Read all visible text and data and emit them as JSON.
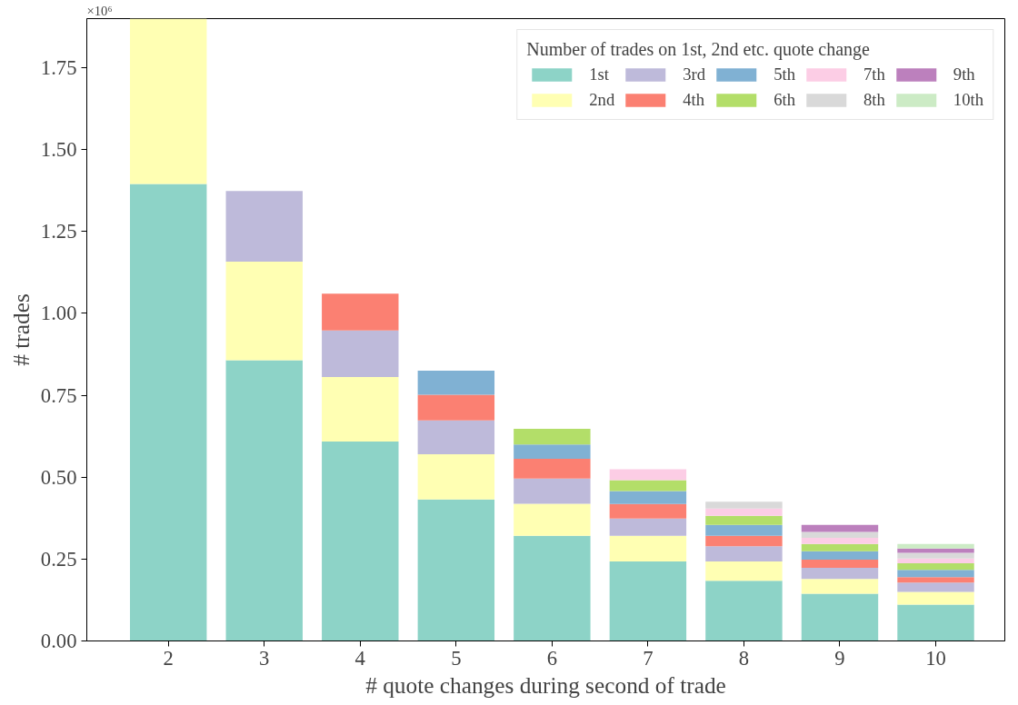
{
  "chart_data": {
    "type": "bar",
    "stacked": true,
    "xlabel": "# quote changes during second of trade",
    "ylabel": "# trades",
    "legend_title": "Number of trades on 1st, 2nd etc. quote change",
    "annotations": [
      "×10⁶"
    ],
    "categories": [
      "2",
      "3",
      "4",
      "5",
      "6",
      "7",
      "8",
      "9",
      "10"
    ],
    "ylim": [
      0,
      1.9
    ],
    "yticks": [
      {
        "value": 0,
        "label": "0.00"
      },
      {
        "value": 0.25,
        "label": "0.25"
      },
      {
        "value": 0.5,
        "label": "0.50"
      },
      {
        "value": 0.75,
        "label": "0.75"
      },
      {
        "value": 1,
        "label": "1.00"
      },
      {
        "value": 1.25,
        "label": "1.25"
      },
      {
        "value": 1.5,
        "label": "1.50"
      },
      {
        "value": 1.75,
        "label": "1.75"
      }
    ],
    "grid": false,
    "legend": "top right",
    "series": [
      {
        "name": "1st",
        "color": "#8dd3c7",
        "values": [
          1.395,
          0.857,
          0.609,
          0.432,
          0.321,
          0.243,
          0.184,
          0.144,
          0.111
        ]
      },
      {
        "name": "2nd",
        "color": "#ffffb3",
        "values": [
          0.505,
          0.301,
          0.197,
          0.138,
          0.098,
          0.078,
          0.059,
          0.045,
          0.039
        ]
      },
      {
        "name": "3rd",
        "color": "#bebada",
        "values": [
          null,
          0.216,
          0.142,
          0.103,
          0.077,
          0.053,
          0.046,
          0.034,
          0.028
        ]
      },
      {
        "name": "4th",
        "color": "#fb8072",
        "values": [
          null,
          null,
          0.112,
          0.079,
          0.06,
          0.044,
          0.032,
          0.025,
          0.017
        ]
      },
      {
        "name": "5th",
        "color": "#80b1d3",
        "values": [
          null,
          null,
          null,
          0.073,
          0.044,
          0.04,
          0.033,
          0.026,
          0.022
        ]
      },
      {
        "name": "6th",
        "color": "#b3de69",
        "values": [
          null,
          null,
          null,
          null,
          0.048,
          0.033,
          0.028,
          0.022,
          0.02
        ]
      },
      {
        "name": "7th",
        "color": "#fccde5",
        "values": [
          null,
          null,
          null,
          null,
          null,
          0.033,
          0.022,
          0.019,
          0.015
        ]
      },
      {
        "name": "8th",
        "color": "#d9d9d9",
        "values": [
          null,
          null,
          null,
          null,
          null,
          null,
          0.021,
          0.018,
          0.017
        ]
      },
      {
        "name": "9th",
        "color": "#bc80bd",
        "values": [
          null,
          null,
          null,
          null,
          null,
          null,
          null,
          0.021,
          0.013
        ]
      },
      {
        "name": "10th",
        "color": "#ccebc5",
        "values": [
          null,
          null,
          null,
          null,
          null,
          null,
          null,
          null,
          0.014
        ]
      }
    ]
  }
}
